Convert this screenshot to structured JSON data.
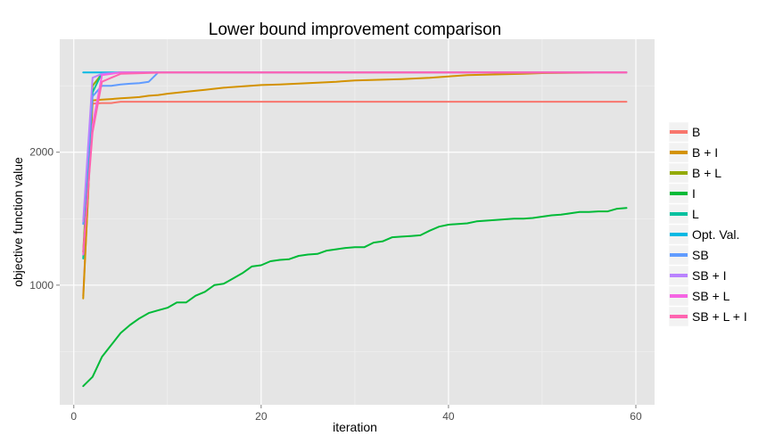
{
  "chart_data": {
    "type": "line",
    "title": "Lower bound improvement comparison",
    "xlabel": "iteration",
    "ylabel": "objective function value",
    "xlim": [
      -1.5,
      62
    ],
    "ylim": [
      100,
      2850
    ],
    "x_ticks": [
      0,
      20,
      40,
      60
    ],
    "x_tick_labels": [
      "0",
      "20",
      "40",
      "60"
    ],
    "y_ticks": [
      1000,
      2000
    ],
    "y_tick_labels": [
      "1000",
      "2000"
    ],
    "grid": true,
    "legend_position": "right",
    "series": [
      {
        "name": "B",
        "color": "#F8766D",
        "x": [
          1,
          2,
          3,
          4,
          5,
          10,
          20,
          30,
          40,
          50,
          59
        ],
        "y": [
          920,
          2365,
          2370,
          2370,
          2380,
          2380,
          2380,
          2380,
          2380,
          2380,
          2380
        ]
      },
      {
        "name": "B + I",
        "color": "#D39200",
        "x": [
          1,
          2,
          3,
          4,
          5,
          6,
          7,
          8,
          9,
          10,
          12,
          14,
          16,
          18,
          20,
          22,
          25,
          28,
          30,
          35,
          38,
          40,
          42,
          45,
          48,
          50,
          59
        ],
        "y": [
          900,
          2390,
          2395,
          2400,
          2405,
          2410,
          2415,
          2425,
          2430,
          2440,
          2455,
          2470,
          2485,
          2495,
          2505,
          2510,
          2520,
          2530,
          2540,
          2550,
          2560,
          2570,
          2580,
          2585,
          2590,
          2595,
          2600
        ]
      },
      {
        "name": "B + L",
        "color": "#93AA00",
        "x": [
          1,
          2,
          3,
          5,
          10,
          20,
          40,
          59
        ],
        "y": [
          1250,
          2500,
          2590,
          2600,
          2600,
          2600,
          2600,
          2600
        ]
      },
      {
        "name": "I",
        "color": "#00BA38",
        "x": [
          1,
          2,
          3,
          4,
          5,
          6,
          7,
          8,
          9,
          10,
          11,
          12,
          13,
          14,
          15,
          16,
          17,
          18,
          19,
          20,
          21,
          22,
          23,
          24,
          25,
          26,
          27,
          28,
          29,
          30,
          31,
          32,
          33,
          34,
          35,
          36,
          37,
          38,
          39,
          40,
          41,
          42,
          43,
          44,
          45,
          46,
          47,
          48,
          49,
          50,
          51,
          52,
          53,
          54,
          55,
          56,
          57,
          58,
          59
        ],
        "y": [
          240,
          310,
          460,
          550,
          640,
          700,
          750,
          790,
          810,
          830,
          870,
          870,
          920,
          950,
          1000,
          1010,
          1050,
          1090,
          1140,
          1150,
          1180,
          1190,
          1195,
          1220,
          1230,
          1235,
          1260,
          1270,
          1280,
          1285,
          1285,
          1320,
          1330,
          1360,
          1365,
          1370,
          1375,
          1410,
          1440,
          1455,
          1460,
          1465,
          1480,
          1485,
          1490,
          1495,
          1500,
          1500,
          1505,
          1515,
          1525,
          1530,
          1540,
          1550,
          1550,
          1555,
          1555,
          1575,
          1580
        ]
      },
      {
        "name": "L",
        "color": "#00C19F",
        "x": [
          1,
          2,
          3,
          5,
          10,
          20,
          40,
          59
        ],
        "y": [
          1200,
          2450,
          2595,
          2600,
          2600,
          2600,
          2600,
          2600
        ]
      },
      {
        "name": "Opt. Val.",
        "color": "#00B9E3",
        "x": [
          1,
          59
        ],
        "y": [
          2600,
          2600
        ]
      },
      {
        "name": "SB",
        "color": "#619CFF",
        "x": [
          1,
          2,
          3,
          4,
          5,
          6,
          7,
          8,
          9,
          10,
          20,
          40,
          59
        ],
        "y": [
          1460,
          2420,
          2500,
          2500,
          2510,
          2515,
          2520,
          2530,
          2600,
          2600,
          2600,
          2600,
          2600
        ]
      },
      {
        "name": "SB + I",
        "color": "#B983FF",
        "x": [
          1,
          2,
          3,
          5,
          10,
          20,
          40,
          59
        ],
        "y": [
          1480,
          2560,
          2590,
          2600,
          2600,
          2600,
          2600,
          2600
        ]
      },
      {
        "name": "SB + L",
        "color": "#F564E3",
        "x": [
          1,
          2,
          3,
          5,
          10,
          20,
          40,
          59
        ],
        "y": [
          1230,
          2200,
          2580,
          2600,
          2600,
          2600,
          2600,
          2600
        ]
      },
      {
        "name": "SB + L + I",
        "color": "#FF64B0",
        "x": [
          1,
          2,
          3,
          4,
          5,
          10,
          20,
          40,
          59
        ],
        "y": [
          1250,
          2150,
          2530,
          2560,
          2590,
          2600,
          2600,
          2600,
          2600
        ]
      }
    ]
  }
}
